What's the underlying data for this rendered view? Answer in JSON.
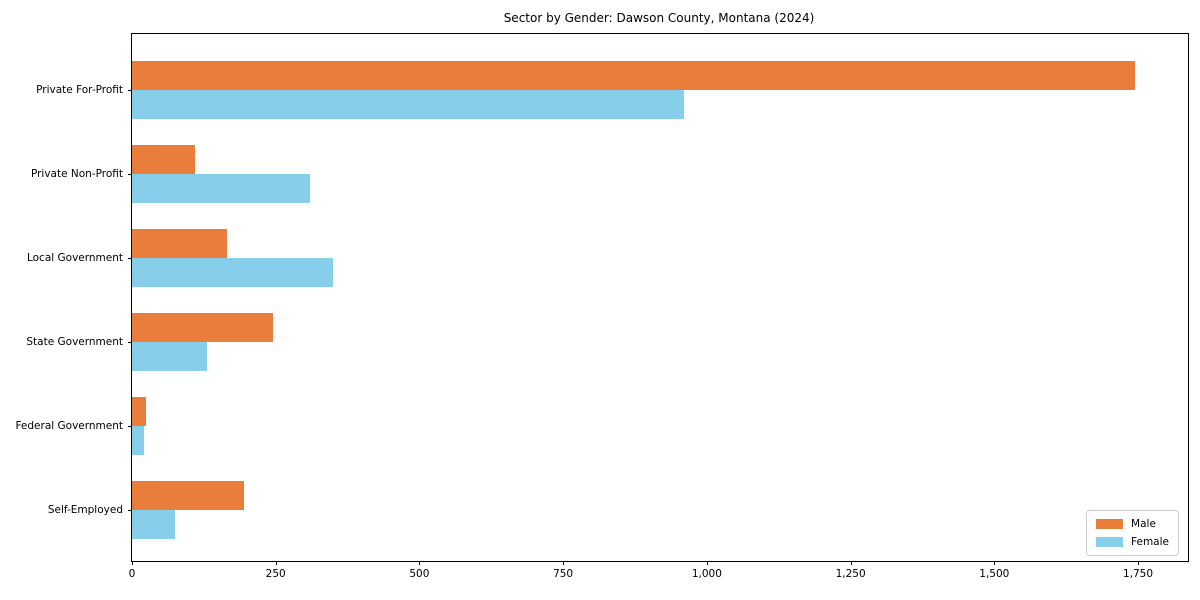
{
  "chart_data": {
    "type": "bar",
    "orientation": "horizontal",
    "title": "Sector by Gender: Dawson County, Montana (2024)",
    "categories": [
      "Private For-Profit",
      "Private Non-Profit",
      "Local Government",
      "State Government",
      "Federal Government",
      "Self-Employed"
    ],
    "series": [
      {
        "name": "Male",
        "color": "#e87d3c",
        "values": [
          1745,
          110,
          165,
          245,
          25,
          195
        ]
      },
      {
        "name": "Female",
        "color": "#87ceeb",
        "values": [
          960,
          310,
          350,
          130,
          20,
          75
        ]
      }
    ],
    "xlim": [
      0,
      1837
    ],
    "xticks": [
      {
        "value": 0,
        "label": "0"
      },
      {
        "value": 250,
        "label": "250"
      },
      {
        "value": 500,
        "label": "500"
      },
      {
        "value": 750,
        "label": "750"
      },
      {
        "value": 1000,
        "label": "1,000"
      },
      {
        "value": 1250,
        "label": "1,250"
      },
      {
        "value": 1500,
        "label": "1,500"
      },
      {
        "value": 1750,
        "label": "1,750"
      }
    ],
    "legend": {
      "position": "lower right"
    },
    "grid": false,
    "xlabel": "",
    "ylabel": ""
  }
}
